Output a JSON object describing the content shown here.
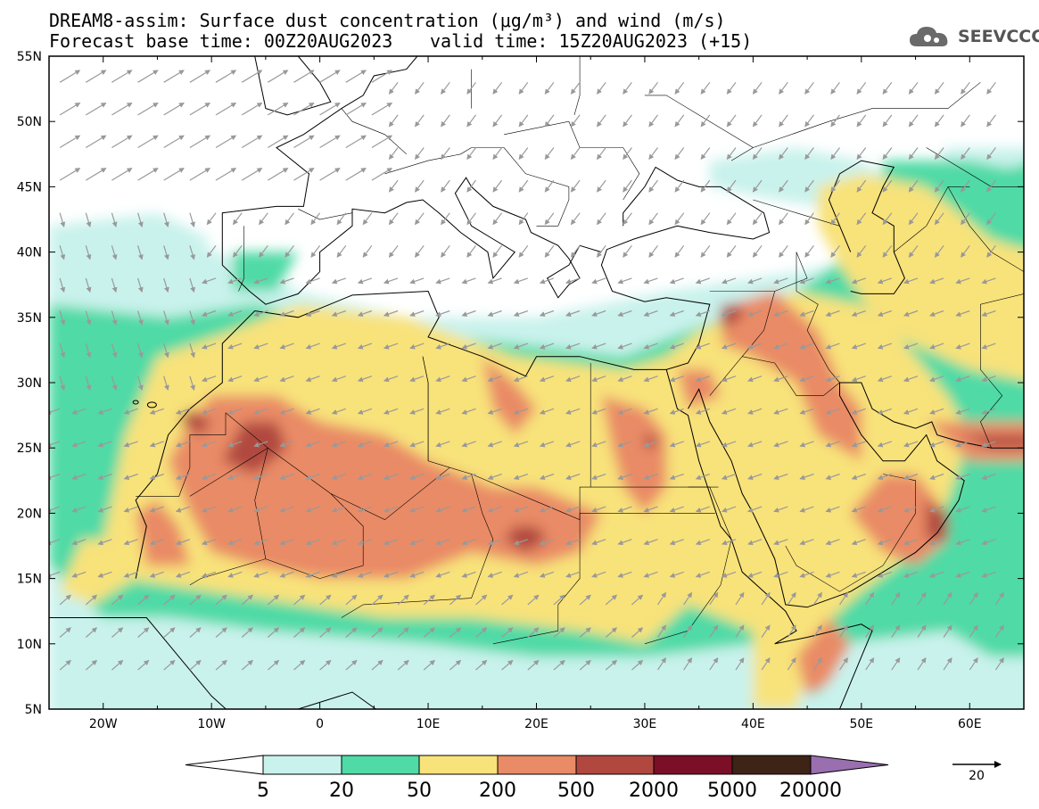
{
  "title": {
    "line1": "DREAM8-assim: Surface dust concentration (μg/m³) and wind (m/s)",
    "base_time": "Forecast base time: 00Z20AUG2023",
    "valid_time": "valid time: 15Z20AUG2023 (+15)"
  },
  "logo": {
    "text": "SEEVCCC",
    "icon": "cloud-logo-icon"
  },
  "axes": {
    "lon_labels": [
      "20W",
      "10W",
      "0",
      "10E",
      "20E",
      "30E",
      "40E",
      "50E",
      "60E"
    ],
    "lat_labels": [
      "55N",
      "50N",
      "45N",
      "40N",
      "35N",
      "30N",
      "25N",
      "20N",
      "15N",
      "10N",
      "5N"
    ],
    "lon_range": [
      -25,
      65
    ],
    "lat_range": [
      5,
      55
    ]
  },
  "colorbar": {
    "labels": [
      "5",
      "20",
      "50",
      "200",
      "500",
      "2000",
      "5000",
      "20000"
    ],
    "colors": [
      "#ffffff",
      "#c9f2ec",
      "#4fdaa6",
      "#f8e27a",
      "#e98b66",
      "#b1483f",
      "#7b0f27",
      "#3d2416",
      "#9a6fb0"
    ]
  },
  "wind_reference": {
    "label": "20"
  }
}
